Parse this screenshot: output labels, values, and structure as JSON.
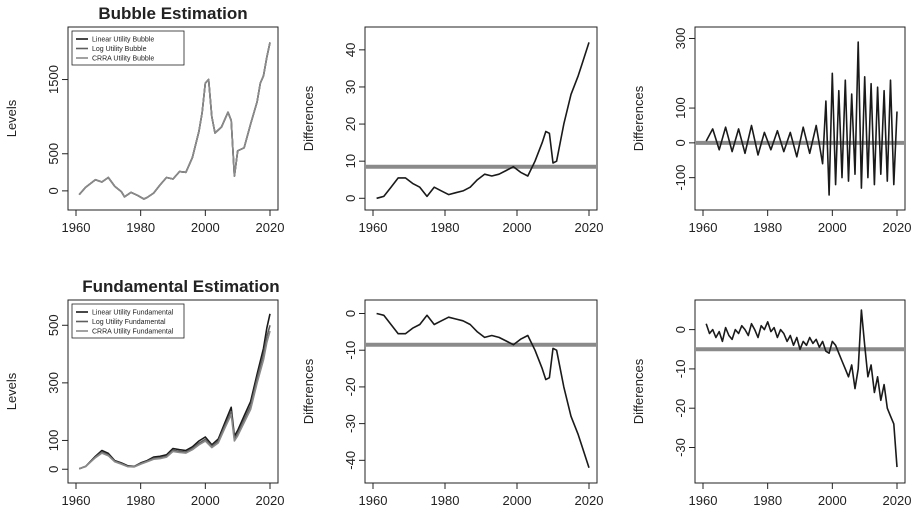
{
  "colors": {
    "line": "#1a1a1a",
    "line2": "#5e5e5e",
    "line3": "#8a8a8a",
    "ref": "#8a8a8a"
  },
  "chart_data": [
    {
      "type": "line",
      "title": "Bubble Estimation",
      "xlabel": "",
      "ylabel": "Levels",
      "xlim": [
        1960,
        2020
      ],
      "ylim": [
        -150,
        2100
      ],
      "xticks": [
        1960,
        1980,
        2000,
        2020
      ],
      "yticks": [
        0,
        500,
        1500
      ],
      "legend": {
        "position": "top-left",
        "entries": [
          "Linear Utility Bubble",
          "Log Utility Bubble",
          "CRRA Utility Bubble"
        ]
      },
      "series": [
        {
          "name": "Linear Utility Bubble",
          "x": [
            1961,
            1963,
            1966,
            1968,
            1970,
            1972,
            1974,
            1975,
            1977,
            1979,
            1981,
            1982,
            1984,
            1986,
            1988,
            1990,
            1992,
            1994,
            1996,
            1998,
            1999,
            2000,
            2001,
            2002,
            2003,
            2005,
            2007,
            2008,
            2009,
            2010,
            2012,
            2014,
            2016,
            2017,
            2018,
            2019,
            2020
          ],
          "values": [
            -50,
            50,
            150,
            120,
            180,
            60,
            -10,
            -80,
            -20,
            -60,
            -110,
            -90,
            -30,
            80,
            180,
            160,
            260,
            250,
            450,
            800,
            1050,
            1450,
            1500,
            1000,
            780,
            860,
            1060,
            950,
            200,
            540,
            580,
            900,
            1200,
            1450,
            1550,
            1800,
            2000
          ]
        },
        {
          "name": "Log Utility Bubble",
          "x": [
            1961,
            1963,
            1966,
            1968,
            1970,
            1972,
            1974,
            1975,
            1977,
            1979,
            1981,
            1982,
            1984,
            1986,
            1988,
            1990,
            1992,
            1994,
            1996,
            1998,
            1999,
            2000,
            2001,
            2002,
            2003,
            2005,
            2007,
            2008,
            2009,
            2010,
            2012,
            2014,
            2016,
            2017,
            2018,
            2019,
            2020
          ],
          "values": [
            -50,
            50,
            150,
            120,
            180,
            60,
            -10,
            -80,
            -20,
            -60,
            -110,
            -90,
            -30,
            80,
            180,
            160,
            260,
            250,
            450,
            800,
            1050,
            1450,
            1500,
            1000,
            780,
            860,
            1060,
            950,
            200,
            540,
            580,
            900,
            1200,
            1450,
            1550,
            1800,
            2000
          ]
        },
        {
          "name": "CRRA Utility Bubble",
          "x": [
            1961,
            1963,
            1966,
            1968,
            1970,
            1972,
            1974,
            1975,
            1977,
            1979,
            1981,
            1982,
            1984,
            1986,
            1988,
            1990,
            1992,
            1994,
            1996,
            1998,
            1999,
            2000,
            2001,
            2002,
            2003,
            2005,
            2007,
            2008,
            2009,
            2010,
            2012,
            2014,
            2016,
            2017,
            2018,
            2019,
            2020
          ],
          "values": [
            -50,
            50,
            150,
            120,
            180,
            60,
            -10,
            -80,
            -20,
            -60,
            -110,
            -90,
            -30,
            80,
            180,
            160,
            260,
            250,
            450,
            800,
            1050,
            1450,
            1500,
            1000,
            780,
            860,
            1060,
            950,
            200,
            540,
            580,
            900,
            1200,
            1450,
            1550,
            1800,
            2000
          ]
        }
      ]
    },
    {
      "type": "line",
      "title": "",
      "xlabel": "",
      "ylabel": "Differences",
      "xlim": [
        1960,
        2020
      ],
      "ylim": [
        -1,
        44
      ],
      "xticks": [
        1960,
        1980,
        2000,
        2020
      ],
      "yticks": [
        0,
        10,
        20,
        30,
        40
      ],
      "reference_line": 8.5,
      "series": [
        {
          "x": [
            1961,
            1963,
            1965,
            1967,
            1969,
            1971,
            1973,
            1975,
            1977,
            1979,
            1981,
            1983,
            1985,
            1987,
            1989,
            1991,
            1993,
            1995,
            1997,
            1999,
            2001,
            2003,
            2005,
            2007,
            2008,
            2009,
            2010,
            2011,
            2013,
            2015,
            2017,
            2018,
            2020
          ],
          "values": [
            0,
            0.5,
            3,
            5.5,
            5.5,
            4,
            3,
            0.5,
            3,
            2,
            1,
            1.5,
            2,
            3,
            5,
            6.5,
            6,
            6.5,
            7.5,
            8.5,
            7,
            6,
            10,
            15,
            18,
            17.5,
            9.5,
            10,
            20,
            28,
            33,
            36,
            42
          ]
        }
      ]
    },
    {
      "type": "line",
      "title": "",
      "xlabel": "",
      "ylabel": "Differences",
      "xlim": [
        1960,
        2020
      ],
      "ylim": [
        -170,
        310
      ],
      "xticks": [
        1960,
        1980,
        2000,
        2020
      ],
      "yticks": [
        -100,
        0,
        100,
        300
      ],
      "reference_line": 0,
      "series": [
        {
          "x": [
            1961,
            1963,
            1965,
            1967,
            1969,
            1971,
            1973,
            1975,
            1977,
            1979,
            1981,
            1983,
            1985,
            1987,
            1989,
            1991,
            1993,
            1995,
            1997,
            1998,
            1999,
            2000,
            2001,
            2002,
            2003,
            2004,
            2005,
            2006,
            2007,
            2008,
            2009,
            2010,
            2011,
            2012,
            2013,
            2014,
            2015,
            2016,
            2017,
            2018,
            2019,
            2020
          ],
          "values": [
            5,
            40,
            -20,
            45,
            -25,
            40,
            -30,
            50,
            -35,
            30,
            -20,
            35,
            -25,
            30,
            -40,
            45,
            -30,
            50,
            -60,
            120,
            -150,
            200,
            -120,
            150,
            -100,
            180,
            -110,
            140,
            -90,
            290,
            -130,
            190,
            -100,
            170,
            -120,
            160,
            -90,
            150,
            -110,
            180,
            -120,
            90
          ]
        }
      ]
    },
    {
      "type": "line",
      "title": "Fundamental Estimation",
      "xlabel": "",
      "ylabel": "Levels",
      "xlim": [
        1960,
        2020
      ],
      "ylim": [
        -20,
        560
      ],
      "xticks": [
        1960,
        1980,
        2000,
        2020
      ],
      "yticks": [
        0,
        100,
        300,
        500
      ],
      "legend": {
        "position": "top-left",
        "entries": [
          "Linear Utility Fundamental",
          "Log Utility Fundamental",
          "CRRA Utility Fundamental"
        ]
      },
      "series": [
        {
          "name": "Linear Utility Fundamental",
          "x": [
            1961,
            1963,
            1966,
            1968,
            1970,
            1972,
            1974,
            1976,
            1978,
            1980,
            1982,
            1984,
            1986,
            1988,
            1990,
            1992,
            1994,
            1996,
            1998,
            2000,
            2002,
            2004,
            2006,
            2008,
            2009,
            2010,
            2012,
            2014,
            2016,
            2018,
            2019,
            2020
          ],
          "values": [
            2,
            10,
            45,
            65,
            55,
            30,
            22,
            12,
            10,
            22,
            30,
            42,
            45,
            50,
            72,
            68,
            65,
            78,
            98,
            112,
            85,
            105,
            160,
            215,
            115,
            135,
            185,
            235,
            330,
            420,
            490,
            540
          ]
        },
        {
          "name": "Log Utility Fundamental",
          "x": [
            1961,
            1963,
            1966,
            1968,
            1970,
            1972,
            1974,
            1976,
            1978,
            1980,
            1982,
            1984,
            1986,
            1988,
            1990,
            1992,
            1994,
            1996,
            1998,
            2000,
            2002,
            2004,
            2006,
            2008,
            2009,
            2010,
            2012,
            2014,
            2016,
            2018,
            2019,
            2020
          ],
          "values": [
            2,
            10,
            42,
            60,
            50,
            28,
            20,
            10,
            9,
            20,
            28,
            38,
            40,
            45,
            66,
            62,
            60,
            72,
            90,
            104,
            80,
            98,
            150,
            200,
            105,
            124,
            172,
            220,
            315,
            400,
            460,
            500
          ]
        },
        {
          "name": "CRRA Utility Fundamental",
          "x": [
            1961,
            1963,
            1966,
            1968,
            1970,
            1972,
            1974,
            1976,
            1978,
            1980,
            1982,
            1984,
            1986,
            1988,
            1990,
            1992,
            1994,
            1996,
            1998,
            2000,
            2002,
            2004,
            2006,
            2008,
            2009,
            2010,
            2012,
            2014,
            2016,
            2018,
            2019,
            2020
          ],
          "values": [
            2,
            10,
            40,
            56,
            47,
            26,
            18,
            9,
            8,
            18,
            26,
            35,
            37,
            42,
            62,
            58,
            56,
            68,
            85,
            98,
            75,
            92,
            142,
            190,
            98,
            116,
            162,
            208,
            300,
            380,
            440,
            480
          ]
        }
      ]
    },
    {
      "type": "line",
      "title": "",
      "xlabel": "",
      "ylabel": "Differences",
      "xlim": [
        1960,
        2020
      ],
      "ylim": [
        -44,
        1.5
      ],
      "xticks": [
        1960,
        1980,
        2000,
        2020
      ],
      "yticks": [
        -40,
        -30,
        -20,
        -10,
        0
      ],
      "reference_line": -8.5,
      "series": [
        {
          "x": [
            1961,
            1963,
            1965,
            1967,
            1969,
            1971,
            1973,
            1975,
            1977,
            1979,
            1981,
            1983,
            1985,
            1987,
            1989,
            1991,
            1993,
            1995,
            1997,
            1999,
            2001,
            2003,
            2005,
            2007,
            2008,
            2009,
            2010,
            2011,
            2013,
            2015,
            2017,
            2018,
            2020
          ],
          "values": [
            0,
            -0.5,
            -3,
            -5.5,
            -5.5,
            -4,
            -3,
            -0.5,
            -3,
            -2,
            -1,
            -1.5,
            -2,
            -3,
            -5,
            -6.5,
            -6,
            -6.5,
            -7.5,
            -8.5,
            -7,
            -6,
            -10,
            -15,
            -18,
            -17.5,
            -9.5,
            -10,
            -20,
            -28,
            -33,
            -36,
            -42
          ]
        }
      ]
    },
    {
      "type": "line",
      "title": "",
      "xlabel": "",
      "ylabel": "Differences",
      "xlim": [
        1960,
        2020
      ],
      "ylim": [
        -37,
        5.5
      ],
      "xticks": [
        1960,
        1980,
        2000,
        2020
      ],
      "yticks": [
        -30,
        -20,
        -10,
        0
      ],
      "reference_line": -5,
      "series": [
        {
          "x": [
            1961,
            1962,
            1963,
            1964,
            1965,
            1966,
            1967,
            1968,
            1969,
            1970,
            1971,
            1972,
            1973,
            1974,
            1975,
            1976,
            1977,
            1978,
            1979,
            1980,
            1981,
            1982,
            1983,
            1984,
            1985,
            1986,
            1987,
            1988,
            1989,
            1990,
            1991,
            1992,
            1993,
            1994,
            1995,
            1996,
            1997,
            1998,
            1999,
            2000,
            2001,
            2002,
            2003,
            2004,
            2005,
            2006,
            2007,
            2008,
            2009,
            2010,
            2011,
            2012,
            2013,
            2014,
            2015,
            2016,
            2017,
            2018,
            2019,
            2020
          ],
          "values": [
            1.5,
            -1,
            0,
            -2,
            -0.5,
            -3,
            0.5,
            -1.5,
            -2.5,
            0,
            -1,
            1,
            0,
            -1.5,
            1.5,
            0,
            -2,
            1,
            0,
            2,
            -0.5,
            0.5,
            -2,
            0,
            -1,
            -3,
            -1.5,
            -4,
            -2,
            -5,
            -3,
            -4,
            -2,
            -3.5,
            -2.5,
            -4.5,
            -3,
            -5.5,
            -6,
            -3,
            -4,
            -6,
            -8,
            -10,
            -12,
            -9,
            -15,
            -10,
            5,
            -4,
            -12,
            -9,
            -16,
            -12,
            -18,
            -14,
            -20,
            -22,
            -24,
            -35
          ]
        }
      ]
    }
  ]
}
